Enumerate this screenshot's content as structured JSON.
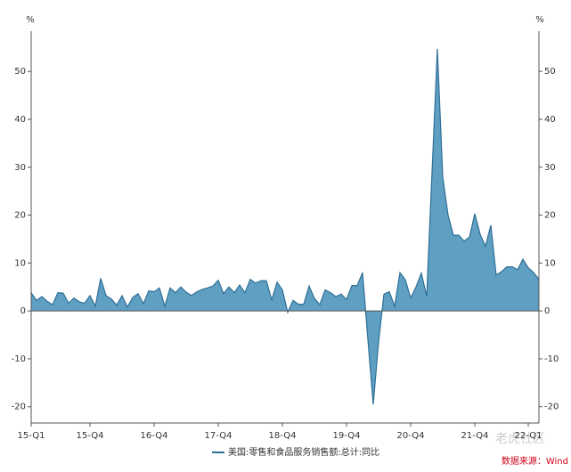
{
  "chart_data": {
    "type": "area",
    "y_unit": "%",
    "y2_unit": "%",
    "categories": [
      "15-Q1",
      null,
      null,
      null,
      null,
      null,
      null,
      null,
      null,
      null,
      null,
      "15-Q4",
      null,
      null,
      null,
      null,
      null,
      null,
      null,
      null,
      null,
      null,
      null,
      "16-Q4",
      null,
      null,
      null,
      null,
      null,
      null,
      null,
      null,
      null,
      null,
      null,
      "17-Q4",
      null,
      null,
      null,
      null,
      null,
      null,
      null,
      null,
      null,
      null,
      null,
      "18-Q4",
      null,
      null,
      null,
      null,
      null,
      null,
      null,
      null,
      null,
      null,
      null,
      "19-Q4",
      null,
      null,
      null,
      null,
      null,
      null,
      null,
      null,
      null,
      null,
      null,
      "20-Q4",
      null,
      null,
      null,
      null,
      null,
      null,
      null,
      null,
      null,
      null,
      null,
      "21-Q4",
      null,
      null,
      null,
      null,
      null,
      null,
      null,
      null,
      null,
      "22-Q1",
      null,
      null
    ],
    "series": [
      {
        "name": "美国:零售和食品服务销售额:总计:同比",
        "color": "#2f6f96",
        "fill": "#5f9fc2",
        "values": [
          3.8,
          2.2,
          3.0,
          2.0,
          1.3,
          3.8,
          3.7,
          1.6,
          2.7,
          1.9,
          1.6,
          3.2,
          1.0,
          6.8,
          3.2,
          2.5,
          1.2,
          3.2,
          0.8,
          2.8,
          3.6,
          1.5,
          4.2,
          4.0,
          4.8,
          1.0,
          4.8,
          3.8,
          5.0,
          3.9,
          3.2,
          4.0,
          4.5,
          4.8,
          5.2,
          6.4,
          3.6,
          5.0,
          3.8,
          5.4,
          3.8,
          6.6,
          5.8,
          6.3,
          6.3,
          2.3,
          6.0,
          4.4,
          -0.3,
          2.2,
          1.4,
          1.4,
          5.2,
          2.6,
          1.3,
          4.4,
          3.8,
          3.0,
          3.5,
          2.4,
          5.3,
          5.3,
          8.0,
          -6.0,
          -19.5,
          -6.5,
          3.5,
          4.0,
          1.0,
          8.0,
          6.5,
          2.7,
          5.0,
          7.9,
          3.0,
          29.0,
          54.7,
          28.0,
          20.0,
          15.8,
          15.8,
          14.6,
          15.4,
          20.3,
          16.0,
          13.5,
          17.9,
          7.5,
          8.2,
          9.2,
          9.2,
          8.6,
          10.8,
          9.0,
          8.0,
          6.6
        ]
      }
    ],
    "ylim": [
      -23.4,
      58.4
    ],
    "yticks": [
      -20,
      -10,
      0,
      10,
      20,
      30,
      40,
      50
    ],
    "y2lim": [
      -23.4,
      58.4
    ],
    "y2ticks": [
      -20,
      -10,
      0,
      10,
      20,
      30,
      40,
      50
    ],
    "grid": false,
    "source": "数据来源：Wind",
    "watermark": "老虎社区"
  }
}
